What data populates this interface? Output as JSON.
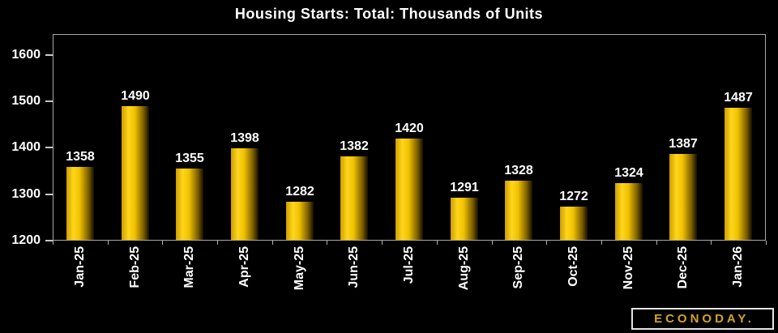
{
  "chart_data": {
    "type": "bar",
    "title": "Housing Starts: Total: Thousands of Units",
    "categories": [
      "Jan-25",
      "Feb-25",
      "Mar-25",
      "Apr-25",
      "May-25",
      "Jun-25",
      "Jul-25",
      "Aug-25",
      "Sep-25",
      "Oct-25",
      "Nov-25",
      "Dec-25",
      "Jan-26"
    ],
    "values": [
      1358,
      1490,
      1355,
      1398,
      1282,
      1382,
      1420,
      1291,
      1328,
      1272,
      1324,
      1387,
      1487
    ],
    "xlabel": "",
    "ylabel": "",
    "ylim": [
      1200,
      1645
    ],
    "yticks": [
      1200,
      1300,
      1400,
      1500,
      1600
    ],
    "grid": false,
    "legend": false,
    "value_labels_shown": true,
    "x_labels_rotated_degrees": 90,
    "colors": {
      "background": "#000000",
      "text": "#ffffff",
      "plot_border": "#a8a8a8",
      "tick": "#c8c8c8",
      "bar_gradient_stops": [
        {
          "color": "#cf9e00",
          "pos": 0
        },
        {
          "color": "#ffd61c",
          "pos": 25
        },
        {
          "color": "#f0c100",
          "pos": 48
        },
        {
          "color": "#7a5d00",
          "pos": 80
        },
        {
          "color": "#140f00",
          "pos": 100
        }
      ]
    }
  },
  "branding": {
    "logo_text": "ECONODAY.",
    "logo_color": "#d2a428"
  }
}
